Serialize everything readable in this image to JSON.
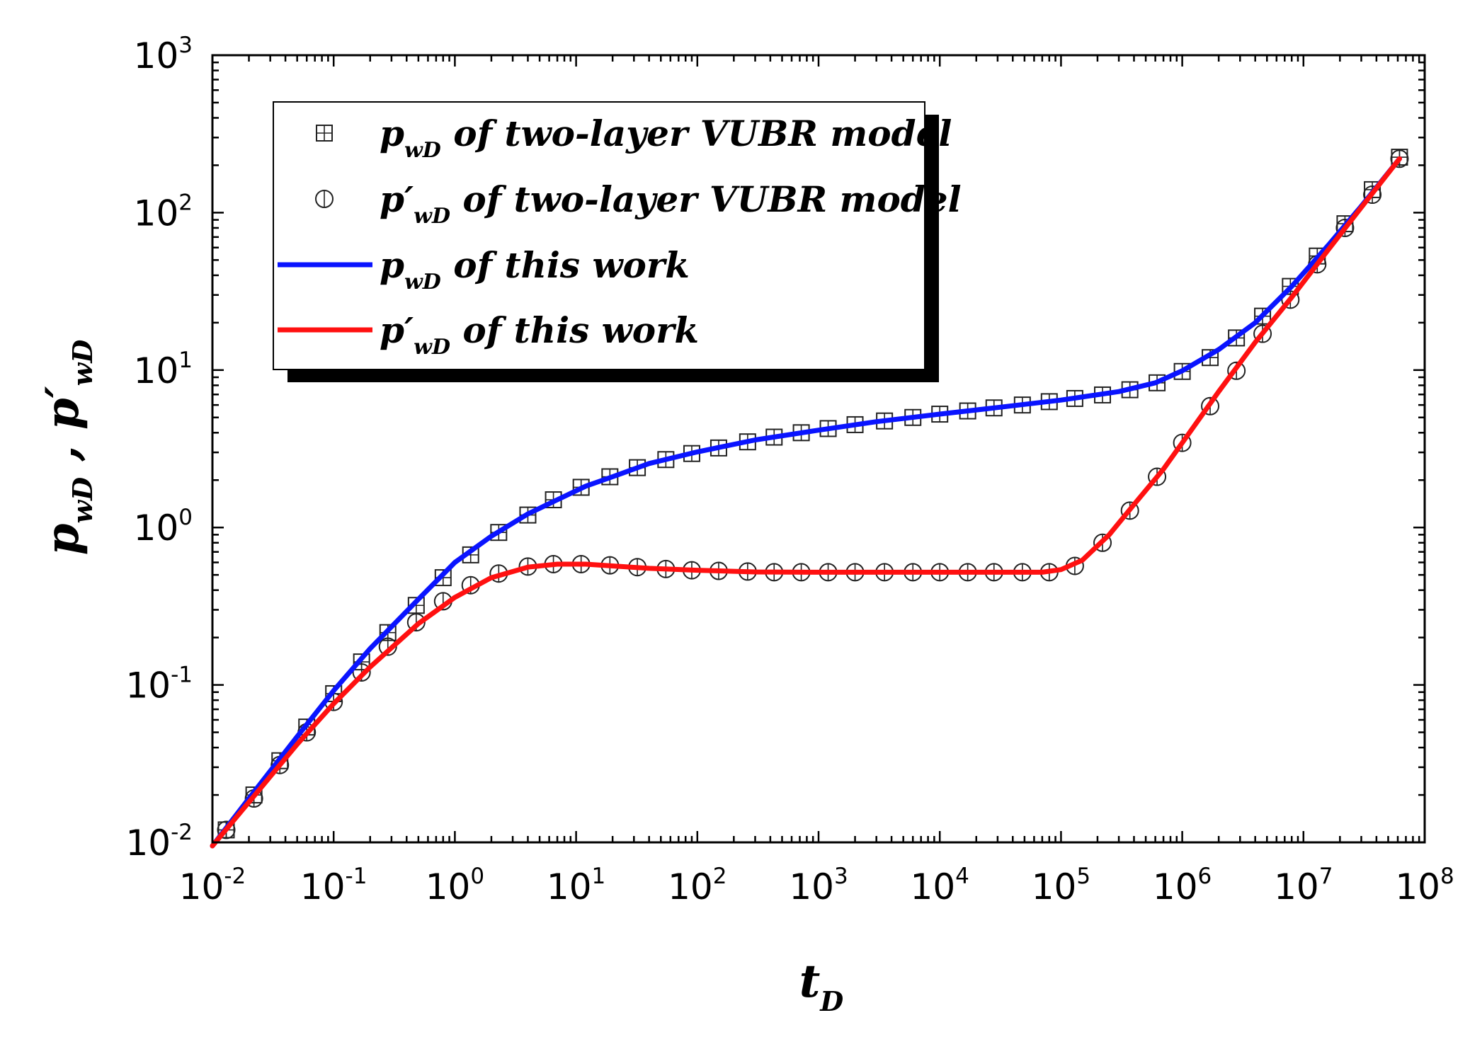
{
  "chart_data": {
    "type": "line",
    "xscale": "log",
    "yscale": "log",
    "xlim": [
      0.01,
      100000000
    ],
    "ylim": [
      0.01,
      1000
    ],
    "x_ticks": [
      {
        "base": "10",
        "exp": "-2"
      },
      {
        "base": "10",
        "exp": "-1"
      },
      {
        "base": "10",
        "exp": "0"
      },
      {
        "base": "10",
        "exp": "1"
      },
      {
        "base": "10",
        "exp": "2"
      },
      {
        "base": "10",
        "exp": "3"
      },
      {
        "base": "10",
        "exp": "4"
      },
      {
        "base": "10",
        "exp": "5"
      },
      {
        "base": "10",
        "exp": "6"
      },
      {
        "base": "10",
        "exp": "7"
      },
      {
        "base": "10",
        "exp": "8"
      }
    ],
    "y_ticks": [
      {
        "base": "10",
        "exp": "-2"
      },
      {
        "base": "10",
        "exp": "-1"
      },
      {
        "base": "10",
        "exp": "0"
      },
      {
        "base": "10",
        "exp": "1"
      },
      {
        "base": "10",
        "exp": "2"
      },
      {
        "base": "10",
        "exp": "3"
      }
    ],
    "xlabel": {
      "main": "t",
      "sub": "D"
    },
    "ylabel": {
      "main1": "p",
      "sub1": "wD",
      "sep": " , ",
      "main2": "p′",
      "sub2": "wD"
    },
    "legend_position": "top-left",
    "legend": [
      {
        "main": "p",
        "sub": "wD",
        "rest": " of two-layer VUBR model",
        "marker": "square-plus"
      },
      {
        "main": "p′",
        "sub": "wD",
        "rest": " of two-layer VUBR model",
        "marker": "circle-bar"
      },
      {
        "main": "p",
        "sub": "wD",
        "rest": " of this work",
        "line_color": "#0a14ff"
      },
      {
        "main": "p′",
        "sub": "wD",
        "rest": " of this work",
        "line_color": "#ff1010"
      }
    ],
    "series": [
      {
        "kind": "markers",
        "marker": "square-plus",
        "points": [
          [
            0.013,
            0.012
          ],
          [
            0.022,
            0.02
          ],
          [
            0.036,
            0.033
          ],
          [
            0.06,
            0.054
          ],
          [
            0.1,
            0.088
          ],
          [
            0.17,
            0.14
          ],
          [
            0.28,
            0.215
          ],
          [
            0.48,
            0.32
          ],
          [
            0.8,
            0.48
          ],
          [
            1.35,
            0.67
          ],
          [
            2.3,
            0.93
          ],
          [
            4,
            1.2
          ],
          [
            6.5,
            1.5
          ],
          [
            11,
            1.8
          ],
          [
            19,
            2.1
          ],
          [
            32,
            2.4
          ],
          [
            55,
            2.7
          ],
          [
            90,
            2.95
          ],
          [
            150,
            3.2
          ],
          [
            260,
            3.5
          ],
          [
            430,
            3.75
          ],
          [
            720,
            4.0
          ],
          [
            1200,
            4.25
          ],
          [
            2000,
            4.5
          ],
          [
            3500,
            4.75
          ],
          [
            6000,
            5.0
          ],
          [
            10000,
            5.25
          ],
          [
            17000,
            5.5
          ],
          [
            28000,
            5.75
          ],
          [
            48000,
            6.0
          ],
          [
            80000,
            6.3
          ],
          [
            130000,
            6.6
          ],
          [
            220000,
            6.95
          ],
          [
            370000,
            7.5
          ],
          [
            620000,
            8.3
          ],
          [
            1000000,
            9.8
          ],
          [
            1700000,
            12
          ],
          [
            2800000,
            16
          ],
          [
            4600000,
            22
          ],
          [
            7800000,
            34
          ],
          [
            13000000,
            53
          ],
          [
            22000000,
            85
          ],
          [
            37000000,
            140
          ],
          [
            62000000,
            225
          ]
        ]
      },
      {
        "kind": "markers",
        "marker": "circle-bar",
        "points": [
          [
            0.013,
            0.012
          ],
          [
            0.022,
            0.019
          ],
          [
            0.036,
            0.031
          ],
          [
            0.06,
            0.05
          ],
          [
            0.1,
            0.078
          ],
          [
            0.17,
            0.12
          ],
          [
            0.28,
            0.175
          ],
          [
            0.48,
            0.25
          ],
          [
            0.8,
            0.34
          ],
          [
            1.35,
            0.43
          ],
          [
            2.3,
            0.51
          ],
          [
            4,
            0.565
          ],
          [
            6.5,
            0.585
          ],
          [
            11,
            0.585
          ],
          [
            19,
            0.575
          ],
          [
            32,
            0.56
          ],
          [
            55,
            0.545
          ],
          [
            90,
            0.535
          ],
          [
            150,
            0.53
          ],
          [
            260,
            0.525
          ],
          [
            430,
            0.52
          ],
          [
            720,
            0.52
          ],
          [
            1200,
            0.52
          ],
          [
            2000,
            0.52
          ],
          [
            3500,
            0.52
          ],
          [
            6000,
            0.52
          ],
          [
            10000,
            0.52
          ],
          [
            17000,
            0.52
          ],
          [
            28000,
            0.52
          ],
          [
            48000,
            0.52
          ],
          [
            80000,
            0.52
          ],
          [
            130000,
            0.57
          ],
          [
            220000,
            0.8
          ],
          [
            370000,
            1.28
          ],
          [
            620000,
            2.1
          ],
          [
            1000000,
            3.45
          ],
          [
            1700000,
            5.9
          ],
          [
            2800000,
            9.9
          ],
          [
            4600000,
            17
          ],
          [
            7800000,
            28
          ],
          [
            13000000,
            47
          ],
          [
            22000000,
            80
          ],
          [
            37000000,
            130
          ],
          [
            62000000,
            220
          ]
        ]
      },
      {
        "kind": "line",
        "color": "#0a14ff",
        "points": [
          [
            0.01,
            0.0095
          ],
          [
            0.02,
            0.019
          ],
          [
            0.05,
            0.047
          ],
          [
            0.1,
            0.092
          ],
          [
            0.2,
            0.17
          ],
          [
            0.5,
            0.35
          ],
          [
            1,
            0.6
          ],
          [
            2,
            0.88
          ],
          [
            4,
            1.22
          ],
          [
            7,
            1.5
          ],
          [
            12,
            1.83
          ],
          [
            20,
            2.1
          ],
          [
            40,
            2.55
          ],
          [
            100,
            3.02
          ],
          [
            300,
            3.6
          ],
          [
            1000,
            4.15
          ],
          [
            3000,
            4.7
          ],
          [
            10000,
            5.25
          ],
          [
            30000,
            5.78
          ],
          [
            100000,
            6.45
          ],
          [
            300000,
            7.3
          ],
          [
            600000,
            8.3
          ],
          [
            1000000,
            9.9
          ],
          [
            2000000,
            13.5
          ],
          [
            4000000,
            20
          ],
          [
            8000000,
            34
          ],
          [
            16000000,
            62
          ],
          [
            30000000,
            110
          ],
          [
            62000000,
            220
          ]
        ]
      },
      {
        "kind": "line",
        "color": "#ff1010",
        "points": [
          [
            0.01,
            0.0095
          ],
          [
            0.02,
            0.018
          ],
          [
            0.05,
            0.042
          ],
          [
            0.1,
            0.076
          ],
          [
            0.2,
            0.13
          ],
          [
            0.5,
            0.245
          ],
          [
            1,
            0.36
          ],
          [
            2,
            0.48
          ],
          [
            4,
            0.56
          ],
          [
            7,
            0.585
          ],
          [
            12,
            0.585
          ],
          [
            20,
            0.57
          ],
          [
            40,
            0.55
          ],
          [
            100,
            0.535
          ],
          [
            300,
            0.522
          ],
          [
            1000,
            0.52
          ],
          [
            10000,
            0.52
          ],
          [
            70000,
            0.52
          ],
          [
            100000,
            0.54
          ],
          [
            150000,
            0.62
          ],
          [
            250000,
            0.9
          ],
          [
            400000,
            1.4
          ],
          [
            700000,
            2.35
          ],
          [
            1000000,
            3.45
          ],
          [
            2000000,
            7.3
          ],
          [
            4000000,
            15
          ],
          [
            8000000,
            29
          ],
          [
            16000000,
            58
          ],
          [
            30000000,
            108
          ],
          [
            62000000,
            220
          ]
        ]
      }
    ]
  }
}
